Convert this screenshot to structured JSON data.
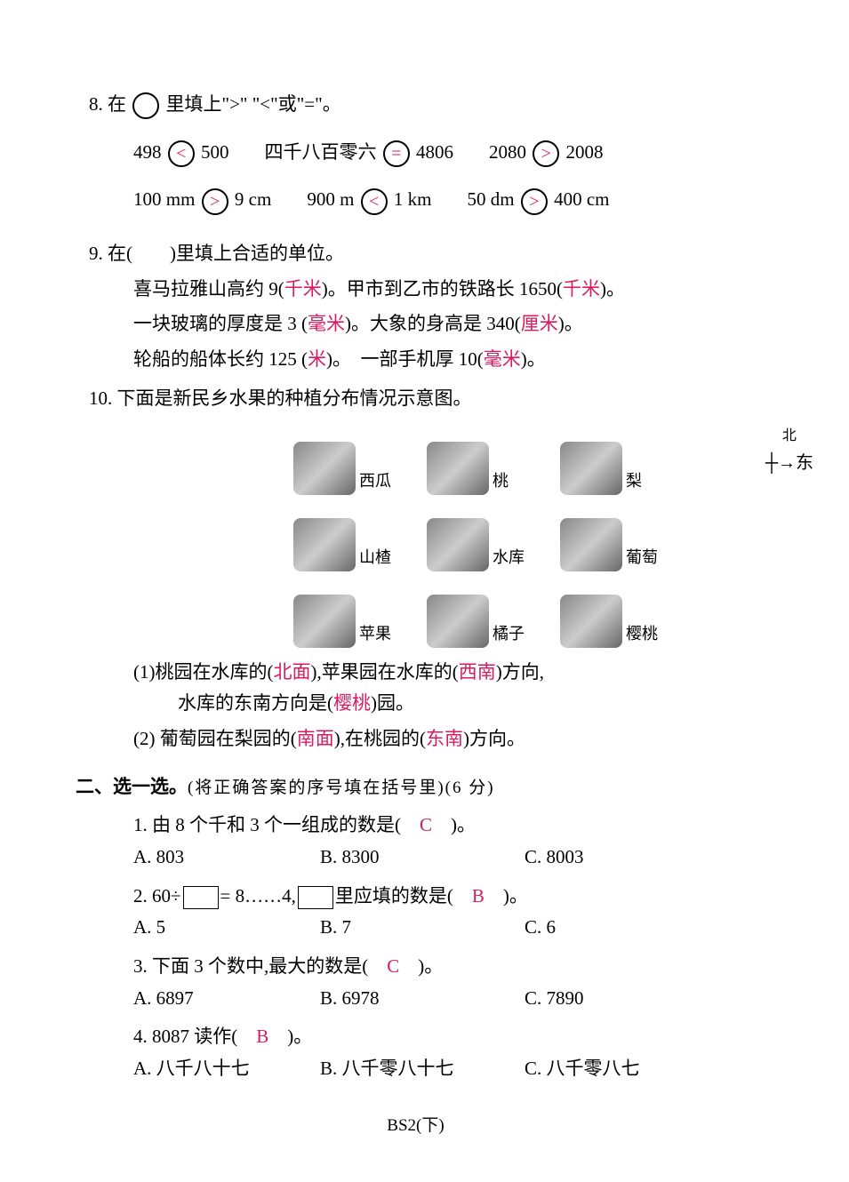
{
  "q8": {
    "prompt_a": "8.  在",
    "prompt_b": "里填上\">\" \"<\"或\"=\"。",
    "row1": [
      {
        "l": "498",
        "op": "<",
        "r": "500"
      },
      {
        "l": "四千八百零六",
        "op": "=",
        "r": "4806"
      },
      {
        "l": "2080",
        "op": ">",
        "r": "2008"
      }
    ],
    "row2": [
      {
        "l": "100 mm",
        "op": ">",
        "r": "9 cm"
      },
      {
        "l": "900 m",
        "op": "<",
        "r": "1 km"
      },
      {
        "l": "50 dm",
        "op": ">",
        "r": "400 cm"
      }
    ]
  },
  "q9": {
    "prompt": "9.  在(　　)里填上合适的单位。",
    "line1_a": "喜马拉雅山高约 9(",
    "line1_ans1": "千米",
    "line1_b": ")。甲市到乙市的铁路长 1650(",
    "line1_ans2": "千米",
    "line1_c": ")。",
    "line2_a": "一块玻璃的厚度是 3 (",
    "line2_ans1": "毫米",
    "line2_b": ")。大象的身高是 340(",
    "line2_ans2": "厘米",
    "line2_c": ")。",
    "line3_a": "轮船的船体长约 125 (",
    "line3_ans1": "米",
    "line3_b": ")。　一部手机厚 10(",
    "line3_ans2": "毫米",
    "line3_c": ")。"
  },
  "q10": {
    "prompt": "10.  下面是新民乡水果的种植分布情况示意图。",
    "fruits": [
      "西瓜",
      "桃",
      "梨",
      "山楂",
      "水库",
      "葡萄",
      "苹果",
      "橘子",
      "樱桃"
    ],
    "compass_n": "北",
    "compass_e": "东",
    "sub1_a": "(1)桃园在水库的(",
    "sub1_ans1": "北面",
    "sub1_b": "),苹果园在水库的(",
    "sub1_ans2": "西南",
    "sub1_c": ")方向,",
    "sub1_cont_a": "水库的东南方向是(",
    "sub1_cont_ans": "樱桃",
    "sub1_cont_b": ")园。",
    "sub2_a": "(2) 葡萄园在梨园的(",
    "sub2_ans1": "南面",
    "sub2_b": "),在桃园的(",
    "sub2_ans2": "东南",
    "sub2_c": ")方向。"
  },
  "section2": {
    "title": "二、选一选。",
    "note": "(将正确答案的序号填在括号里)(6 分)"
  },
  "mc1": {
    "q_a": "1.  由 8 个千和 3 个一组成的数是(",
    "ans": "C",
    "q_b": ")。",
    "opts": {
      "a": "A.  803",
      "b": "B.  8300",
      "c": "C.  8003"
    }
  },
  "mc2": {
    "q_a": "2.  60÷",
    "q_b": "= 8……4,",
    "q_c": "里应填的数是(",
    "ans": "B",
    "q_d": ")。",
    "opts": {
      "a": "A.  5",
      "b": "B.  7",
      "c": "C.  6"
    }
  },
  "mc3": {
    "q_a": "3.  下面 3 个数中,最大的数是(",
    "ans": "C",
    "q_b": ")。",
    "opts": {
      "a": "A.  6897",
      "b": "B.  6978",
      "c": "C.  7890"
    }
  },
  "mc4": {
    "q_a": "4.  8087 读作(",
    "ans": "B",
    "q_b": ")。",
    "opts": {
      "a": "A.  八千八十七",
      "b": "B.  八千零八十七",
      "c": "C.  八千零八七"
    }
  },
  "footer": "BS2(下)"
}
